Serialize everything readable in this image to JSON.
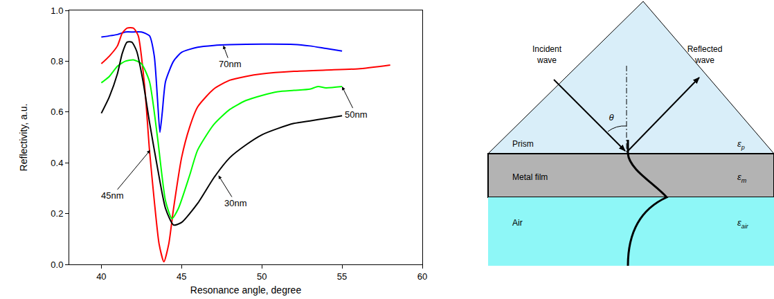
{
  "chart_data": {
    "type": "line",
    "x_label": "Resonance angle, degree",
    "y_label": "Reflectivity, a.u.",
    "xlim": [
      38,
      60
    ],
    "xticks": [
      40,
      45,
      50,
      55,
      60
    ],
    "ylim": [
      0,
      1
    ],
    "yticks": [
      {
        "value": 0,
        "label": "0.0"
      },
      0.2,
      0.4,
      0.6,
      0.8,
      {
        "value": 1,
        "label": "1.0"
      }
    ],
    "grid": false,
    "series": [
      {
        "color": "#0000ff",
        "x": [
          40,
          41,
          41.5,
          42,
          42.5,
          43,
          43.3,
          43.5,
          43.65,
          43.8,
          44,
          44.5,
          45,
          46,
          47,
          48,
          50,
          52,
          53,
          54,
          55
        ],
        "values": [
          0.895,
          0.905,
          0.915,
          0.915,
          0.915,
          0.9,
          0.82,
          0.65,
          0.52,
          0.6,
          0.72,
          0.8,
          0.835,
          0.855,
          0.862,
          0.865,
          0.867,
          0.866,
          0.86,
          0.85,
          0.84
        ]
      },
      {
        "color": "#ff0000",
        "x": [
          40,
          40.5,
          41,
          41.3,
          41.6,
          42,
          42.3,
          42.7,
          43,
          43.3,
          43.6,
          43.9,
          44.2,
          44.5,
          45,
          45.5,
          46,
          47,
          48,
          49,
          50,
          52,
          54,
          56,
          58
        ],
        "values": [
          0.79,
          0.82,
          0.86,
          0.91,
          0.93,
          0.93,
          0.9,
          0.7,
          0.45,
          0.25,
          0.08,
          0.01,
          0.08,
          0.22,
          0.42,
          0.54,
          0.62,
          0.69,
          0.725,
          0.74,
          0.75,
          0.76,
          0.765,
          0.77,
          0.785
        ]
      },
      {
        "color": "#00ff00",
        "x": [
          40,
          40.5,
          41,
          41.5,
          42,
          42.5,
          43,
          43.5,
          44,
          44.4,
          44.8,
          45.5,
          46,
          47,
          48,
          49,
          50,
          51,
          52,
          53,
          53.5,
          54,
          55
        ],
        "values": [
          0.715,
          0.74,
          0.78,
          0.8,
          0.805,
          0.79,
          0.72,
          0.5,
          0.25,
          0.18,
          0.22,
          0.35,
          0.45,
          0.55,
          0.61,
          0.645,
          0.665,
          0.68,
          0.685,
          0.69,
          0.7,
          0.695,
          0.7
        ]
      },
      {
        "color": "#000000",
        "x": [
          40,
          40.5,
          41,
          41.3,
          41.6,
          41.9,
          42.2,
          42.6,
          43,
          43.5,
          44,
          44.5,
          45,
          46,
          47,
          48,
          49,
          50,
          51,
          52,
          53,
          54,
          55
        ],
        "values": [
          0.595,
          0.66,
          0.75,
          0.83,
          0.875,
          0.875,
          0.84,
          0.72,
          0.56,
          0.38,
          0.22,
          0.155,
          0.165,
          0.24,
          0.34,
          0.42,
          0.47,
          0.51,
          0.535,
          0.555,
          0.565,
          0.575,
          0.585
        ]
      }
    ],
    "annotations": [
      {
        "text": "70nm",
        "x": 47.6,
        "y": 0.862
      },
      {
        "text": "45nm",
        "x": 43.05,
        "y": 0.45
      },
      {
        "text": "50nm",
        "x": 55,
        "y": 0.7
      },
      {
        "text": "30nm",
        "x": 47.3,
        "y": 0.35
      }
    ]
  },
  "diagram": {
    "incident": "Incident wave",
    "reflected": "Reflected wave",
    "angle": "θ",
    "layers": [
      {
        "label": "Prism",
        "symbol": "ε",
        "sub": "p"
      },
      {
        "label": "Metal film",
        "symbol": "ε",
        "sub": "m"
      },
      {
        "label": "Air",
        "symbol": "ε",
        "sub": "air"
      }
    ]
  }
}
